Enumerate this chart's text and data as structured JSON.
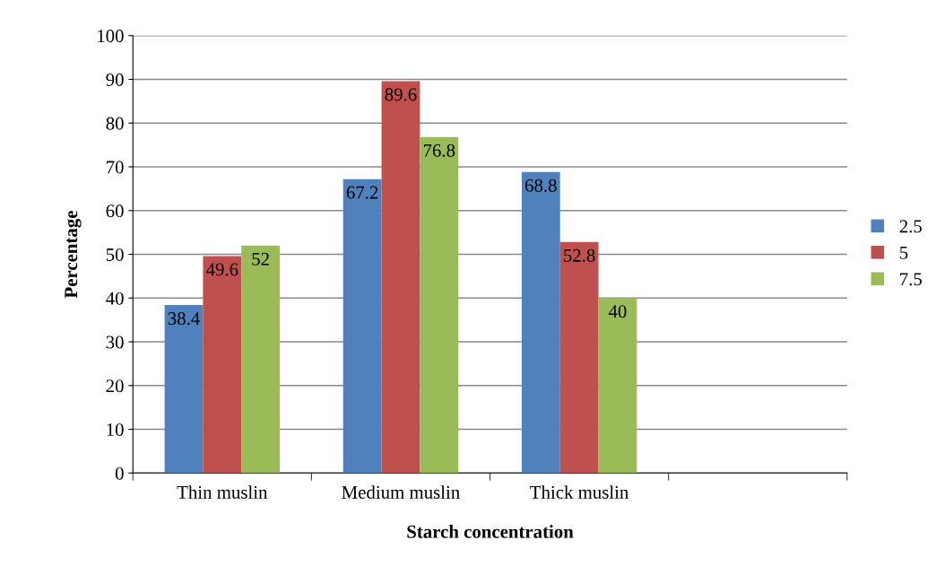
{
  "chart_data": {
    "type": "bar",
    "xlabel": "Starch concentration",
    "ylabel": "Percentage",
    "categories": [
      "Thin muslin",
      "Medium muslin",
      "Thick muslin",
      null
    ],
    "series": [
      {
        "name": "2.5",
        "color": "#4f81bd",
        "values": [
          38.4,
          67.2,
          68.8,
          null
        ]
      },
      {
        "name": "5",
        "color": "#c0504d",
        "values": [
          49.6,
          89.6,
          52.8,
          null
        ]
      },
      {
        "name": "7.5",
        "color": "#9bbb59",
        "values": [
          52,
          76.8,
          40,
          null
        ]
      }
    ],
    "ylim": [
      0,
      100
    ],
    "yticks": [
      0,
      10,
      20,
      30,
      40,
      50,
      60,
      70,
      80,
      90,
      100
    ],
    "grid": "y",
    "legend": "right",
    "data_labels": true
  }
}
